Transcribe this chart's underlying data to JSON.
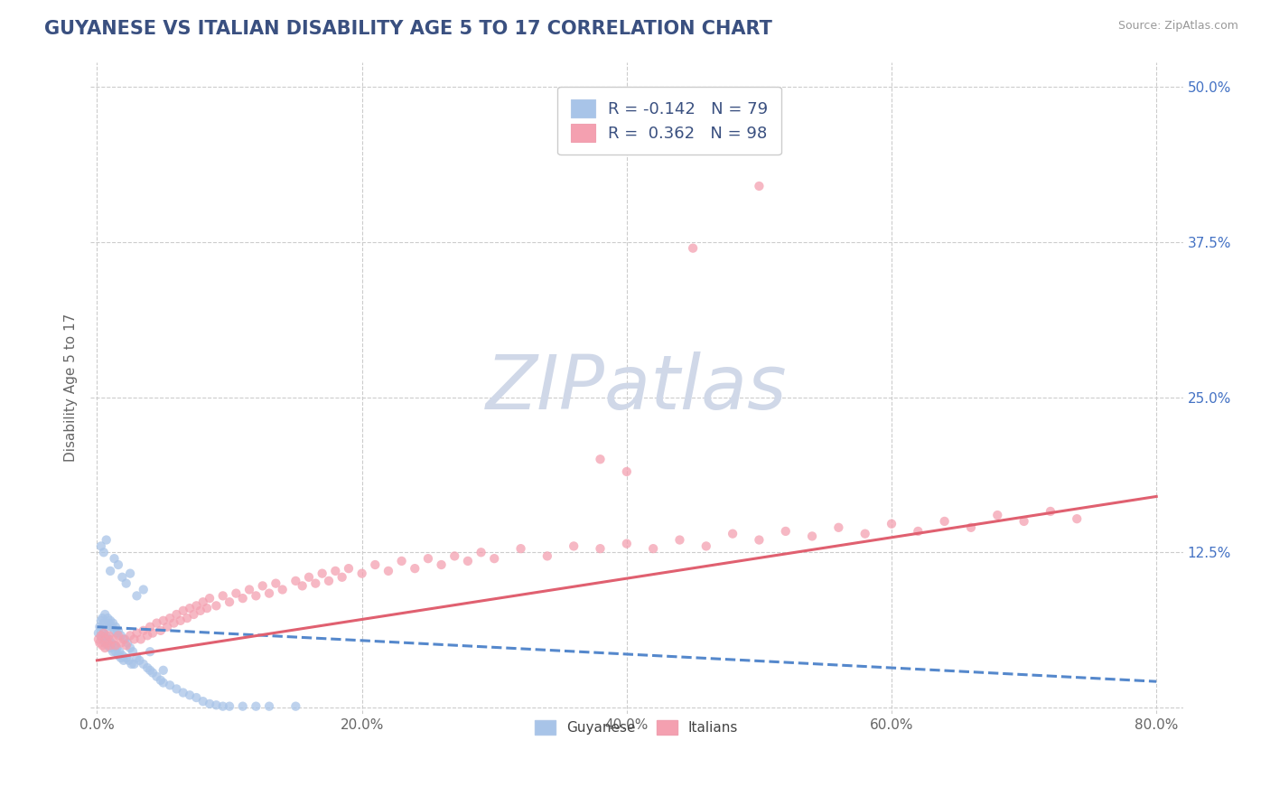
{
  "title": "GUYANESE VS ITALIAN DISABILITY AGE 5 TO 17 CORRELATION CHART",
  "source_text": "Source: ZipAtlas.com",
  "ylabel": "Disability Age 5 to 17",
  "xlim": [
    -0.005,
    0.82
  ],
  "ylim": [
    -0.005,
    0.52
  ],
  "xticks": [
    0.0,
    0.2,
    0.4,
    0.6,
    0.8
  ],
  "xticklabels": [
    "0.0%",
    "20.0%",
    "40.0%",
    "60.0%",
    "80.0%"
  ],
  "yticks": [
    0.0,
    0.125,
    0.25,
    0.375,
    0.5
  ],
  "yticklabels": [
    "",
    "12.5%",
    "25.0%",
    "37.5%",
    "50.0%"
  ],
  "background_color": "#ffffff",
  "grid_color": "#cccccc",
  "title_color": "#3a5080",
  "title_fontsize": 15,
  "watermark": "ZIPatlas",
  "watermark_color": "#d0d8e8",
  "guyanese_color": "#a8c4e8",
  "guyanese_line_color": "#5588cc",
  "italians_color": "#f4a0b0",
  "italians_line_color": "#e06070",
  "axis_label_color": "#666666",
  "tick_color": "#666666",
  "ytick_color": "#4472c4",
  "tick_fontsize": 11,
  "guyanese_R": -0.142,
  "guyanese_N": 79,
  "italians_R": 0.362,
  "italians_N": 98,
  "guyanese_line_intercept": 0.065,
  "guyanese_line_slope": -0.055,
  "italians_line_intercept": 0.038,
  "italians_line_slope": 0.165,
  "guyanese_x": [
    0.001,
    0.002,
    0.003,
    0.003,
    0.004,
    0.004,
    0.005,
    0.005,
    0.006,
    0.006,
    0.007,
    0.007,
    0.008,
    0.008,
    0.009,
    0.009,
    0.01,
    0.01,
    0.011,
    0.011,
    0.012,
    0.012,
    0.013,
    0.013,
    0.014,
    0.014,
    0.015,
    0.015,
    0.016,
    0.016,
    0.017,
    0.018,
    0.018,
    0.019,
    0.02,
    0.021,
    0.022,
    0.023,
    0.024,
    0.025,
    0.026,
    0.027,
    0.028,
    0.03,
    0.032,
    0.035,
    0.038,
    0.04,
    0.042,
    0.045,
    0.048,
    0.05,
    0.055,
    0.06,
    0.065,
    0.07,
    0.075,
    0.08,
    0.085,
    0.09,
    0.095,
    0.1,
    0.11,
    0.12,
    0.13,
    0.15,
    0.003,
    0.005,
    0.007,
    0.01,
    0.013,
    0.016,
    0.019,
    0.022,
    0.025,
    0.03,
    0.035,
    0.04,
    0.05
  ],
  "guyanese_y": [
    0.06,
    0.065,
    0.058,
    0.07,
    0.055,
    0.072,
    0.06,
    0.068,
    0.052,
    0.075,
    0.058,
    0.065,
    0.05,
    0.072,
    0.055,
    0.068,
    0.048,
    0.07,
    0.052,
    0.065,
    0.045,
    0.068,
    0.05,
    0.062,
    0.045,
    0.065,
    0.048,
    0.06,
    0.042,
    0.062,
    0.045,
    0.04,
    0.058,
    0.042,
    0.038,
    0.055,
    0.04,
    0.052,
    0.038,
    0.048,
    0.035,
    0.045,
    0.035,
    0.04,
    0.038,
    0.035,
    0.032,
    0.03,
    0.028,
    0.025,
    0.022,
    0.02,
    0.018,
    0.015,
    0.012,
    0.01,
    0.008,
    0.005,
    0.003,
    0.002,
    0.001,
    0.001,
    0.001,
    0.001,
    0.001,
    0.001,
    0.13,
    0.125,
    0.135,
    0.11,
    0.12,
    0.115,
    0.105,
    0.1,
    0.108,
    0.09,
    0.095,
    0.045,
    0.03
  ],
  "italians_x": [
    0.001,
    0.002,
    0.003,
    0.004,
    0.005,
    0.006,
    0.007,
    0.008,
    0.009,
    0.01,
    0.012,
    0.014,
    0.016,
    0.018,
    0.02,
    0.022,
    0.025,
    0.028,
    0.03,
    0.033,
    0.035,
    0.038,
    0.04,
    0.042,
    0.045,
    0.048,
    0.05,
    0.053,
    0.055,
    0.058,
    0.06,
    0.063,
    0.065,
    0.068,
    0.07,
    0.073,
    0.075,
    0.078,
    0.08,
    0.083,
    0.085,
    0.09,
    0.095,
    0.1,
    0.105,
    0.11,
    0.115,
    0.12,
    0.125,
    0.13,
    0.135,
    0.14,
    0.15,
    0.155,
    0.16,
    0.165,
    0.17,
    0.175,
    0.18,
    0.185,
    0.19,
    0.2,
    0.21,
    0.22,
    0.23,
    0.24,
    0.25,
    0.26,
    0.27,
    0.28,
    0.29,
    0.3,
    0.32,
    0.34,
    0.36,
    0.38,
    0.4,
    0.42,
    0.44,
    0.46,
    0.48,
    0.5,
    0.52,
    0.54,
    0.56,
    0.58,
    0.6,
    0.62,
    0.64,
    0.66,
    0.68,
    0.7,
    0.72,
    0.74,
    0.38,
    0.4,
    0.45,
    0.5
  ],
  "italians_y": [
    0.055,
    0.052,
    0.058,
    0.05,
    0.06,
    0.048,
    0.055,
    0.052,
    0.058,
    0.05,
    0.055,
    0.05,
    0.058,
    0.052,
    0.055,
    0.05,
    0.058,
    0.055,
    0.06,
    0.055,
    0.062,
    0.058,
    0.065,
    0.06,
    0.068,
    0.062,
    0.07,
    0.065,
    0.072,
    0.068,
    0.075,
    0.07,
    0.078,
    0.072,
    0.08,
    0.075,
    0.082,
    0.078,
    0.085,
    0.08,
    0.088,
    0.082,
    0.09,
    0.085,
    0.092,
    0.088,
    0.095,
    0.09,
    0.098,
    0.092,
    0.1,
    0.095,
    0.102,
    0.098,
    0.105,
    0.1,
    0.108,
    0.102,
    0.11,
    0.105,
    0.112,
    0.108,
    0.115,
    0.11,
    0.118,
    0.112,
    0.12,
    0.115,
    0.122,
    0.118,
    0.125,
    0.12,
    0.128,
    0.122,
    0.13,
    0.128,
    0.132,
    0.128,
    0.135,
    0.13,
    0.14,
    0.135,
    0.142,
    0.138,
    0.145,
    0.14,
    0.148,
    0.142,
    0.15,
    0.145,
    0.155,
    0.15,
    0.158,
    0.152,
    0.2,
    0.19,
    0.37,
    0.42
  ]
}
